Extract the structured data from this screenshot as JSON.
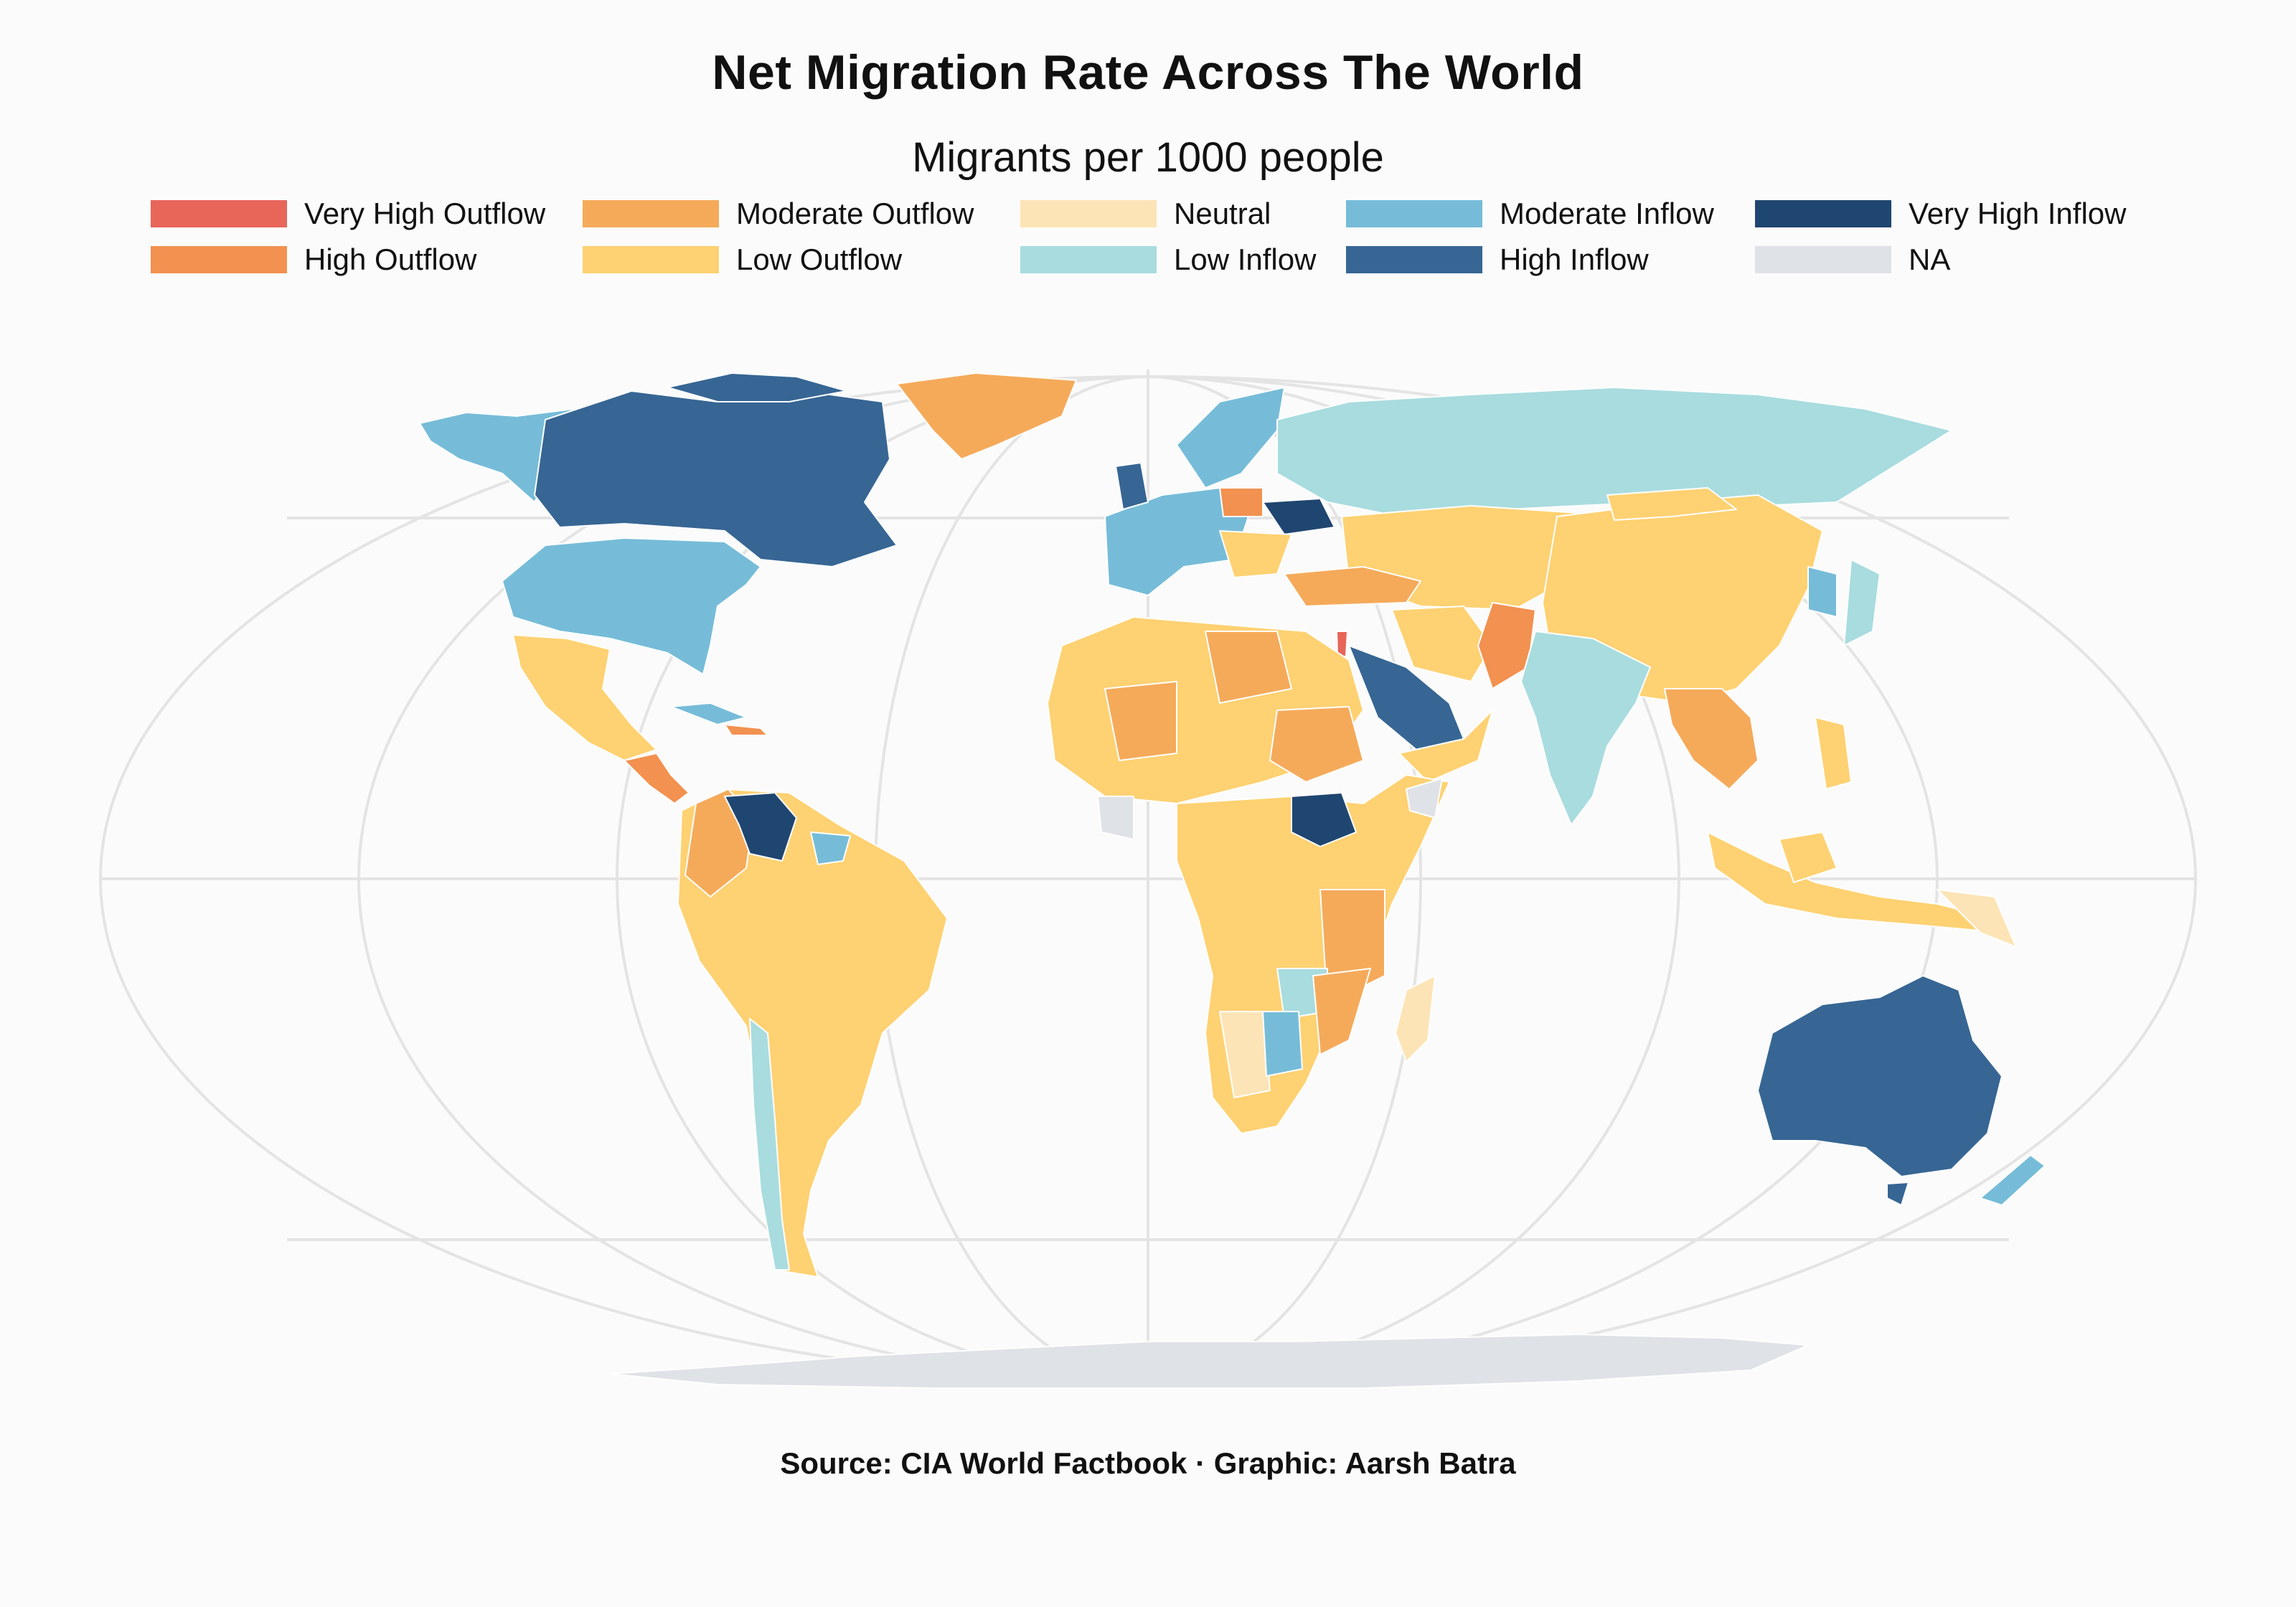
{
  "title": "Net Migration Rate Across The World",
  "subtitle": "Migrants per 1000 people",
  "legend": [
    {
      "label": "Very High Outflow",
      "color": "#e8655a"
    },
    {
      "label": "Moderate Outflow",
      "color": "#f5aa5a"
    },
    {
      "label": "Neutral",
      "color": "#fde4b6"
    },
    {
      "label": "Moderate Inflow",
      "color": "#76bcd8"
    },
    {
      "label": "Very High Inflow",
      "color": "#1f4670"
    },
    {
      "label": "High Outflow",
      "color": "#f29150"
    },
    {
      "label": "Low Outflow",
      "color": "#fed172"
    },
    {
      "label": "Low Inflow",
      "color": "#a9dcdf"
    },
    {
      "label": "High Inflow",
      "color": "#376694"
    },
    {
      "label": "NA",
      "color": "#dfe2e6"
    }
  ],
  "source": "Source: CIA World Factbook · Graphic: Aarsh Batra"
}
